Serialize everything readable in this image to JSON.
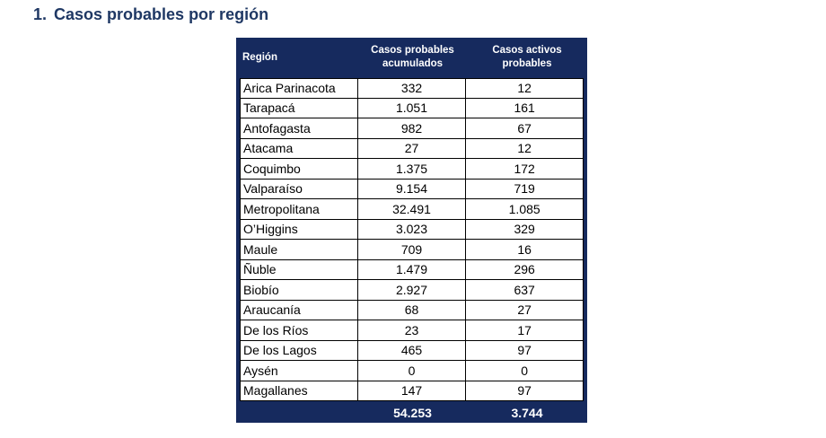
{
  "section": {
    "number": "1.",
    "title": "Casos probables por región"
  },
  "table": {
    "headers": {
      "region": "Región",
      "acumulados": "Casos probables acumulados",
      "activos": "Casos activos probables"
    },
    "rows": [
      {
        "region": "Arica Parinacota",
        "acumulados": "332",
        "activos": "12"
      },
      {
        "region": "Tarapacá",
        "acumulados": "1.051",
        "activos": "161"
      },
      {
        "region": "Antofagasta",
        "acumulados": "982",
        "activos": "67"
      },
      {
        "region": "Atacama",
        "acumulados": "27",
        "activos": "12"
      },
      {
        "region": "Coquimbo",
        "acumulados": "1.375",
        "activos": "172"
      },
      {
        "region": "Valparaíso",
        "acumulados": "9.154",
        "activos": "719"
      },
      {
        "region": "Metropolitana",
        "acumulados": "32.491",
        "activos": "1.085"
      },
      {
        "region": "O’Higgins",
        "acumulados": "3.023",
        "activos": "329"
      },
      {
        "region": "Maule",
        "acumulados": "709",
        "activos": "16"
      },
      {
        "region": "Ñuble",
        "acumulados": "1.479",
        "activos": "296"
      },
      {
        "region": "Biobío",
        "acumulados": "2.927",
        "activos": "637"
      },
      {
        "region": "Araucanía",
        "acumulados": "68",
        "activos": "27"
      },
      {
        "region": "De los Ríos",
        "acumulados": "23",
        "activos": "17"
      },
      {
        "region": "De los Lagos",
        "acumulados": "465",
        "activos": "97"
      },
      {
        "region": "Aysén",
        "acumulados": "0",
        "activos": "0"
      },
      {
        "region": "Magallanes",
        "acumulados": "147",
        "activos": "97"
      }
    ],
    "totals": {
      "region": "",
      "acumulados": "54.253",
      "activos": "3.744"
    }
  },
  "colors": {
    "header_bg": "#162a5e",
    "title": "#1f3864"
  }
}
